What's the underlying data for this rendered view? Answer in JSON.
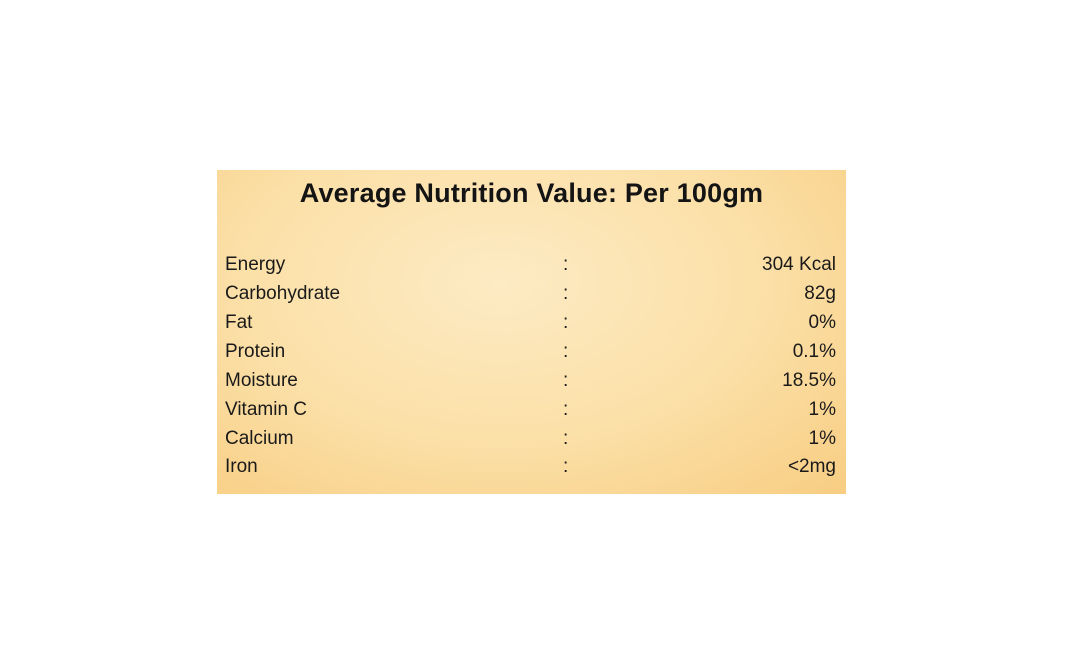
{
  "label": {
    "title": "Average Nutrition Value: Per 100gm",
    "separator": ":",
    "rows": [
      {
        "name": "Energy",
        "value": "304 Kcal"
      },
      {
        "name": "Carbohydrate",
        "value": "82g"
      },
      {
        "name": "Fat",
        "value": "0%"
      },
      {
        "name": "Protein",
        "value": "0.1%"
      },
      {
        "name": "Moisture",
        "value": "18.5%"
      },
      {
        "name": "Vitamin C",
        "value": "1%"
      },
      {
        "name": "Calcium",
        "value": "1%"
      },
      {
        "name": "Iron",
        "value": "<2mg"
      }
    ]
  },
  "colors": {
    "panel_light": "#fdebc4",
    "panel_dark": "#f8cd82",
    "text": "#1a1a1a"
  }
}
